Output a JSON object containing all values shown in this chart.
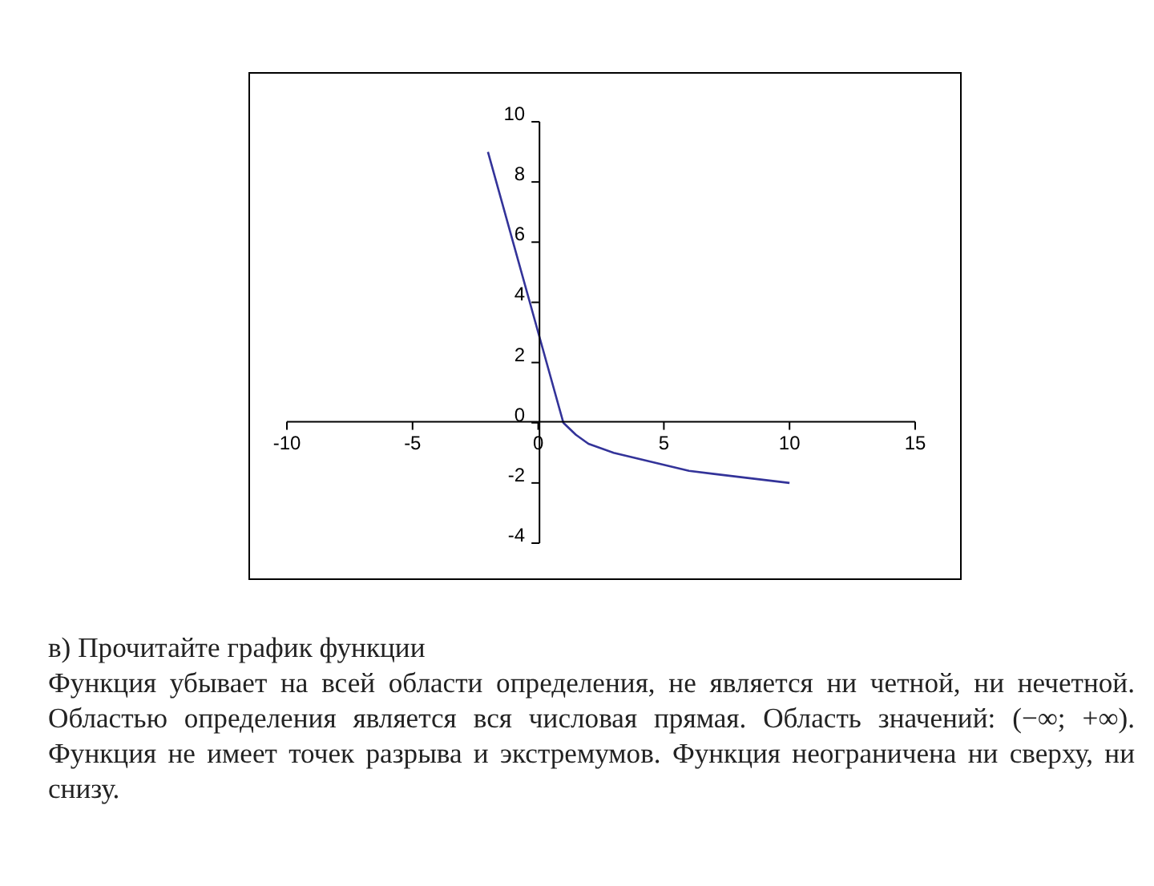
{
  "chart_data": {
    "type": "line",
    "x": [
      -2,
      -1,
      0,
      1,
      1.5,
      2,
      3,
      4,
      5,
      6,
      7,
      8,
      9,
      10
    ],
    "series": [
      {
        "color": "#333399",
        "values": [
          9,
          6,
          3,
          0,
          -0.4,
          -0.7,
          -1,
          -1.2,
          -1.4,
          -1.6,
          -1.7,
          -1.8,
          -1.9,
          -2
        ]
      }
    ],
    "xlim": [
      -10,
      15
    ],
    "xticks": [
      -10,
      -5,
      0,
      5,
      10,
      15
    ],
    "ylim": [
      -4,
      10
    ],
    "yticks": [
      -4,
      -2,
      0,
      2,
      4,
      6,
      8,
      10
    ],
    "legend": false,
    "marker": "none",
    "line_style": "solid",
    "annotations": [
      "в) Прочитайте график функции",
      "Функция убывает на всей области определения, не является ни четной, ни нечетной. Областью определения является вся числовая прямая. Область значений: (−∞; +∞). Функция не имеет точек разрыва и экстремумов. Функция неограничена ни сверху, ни снизу."
    ]
  }
}
